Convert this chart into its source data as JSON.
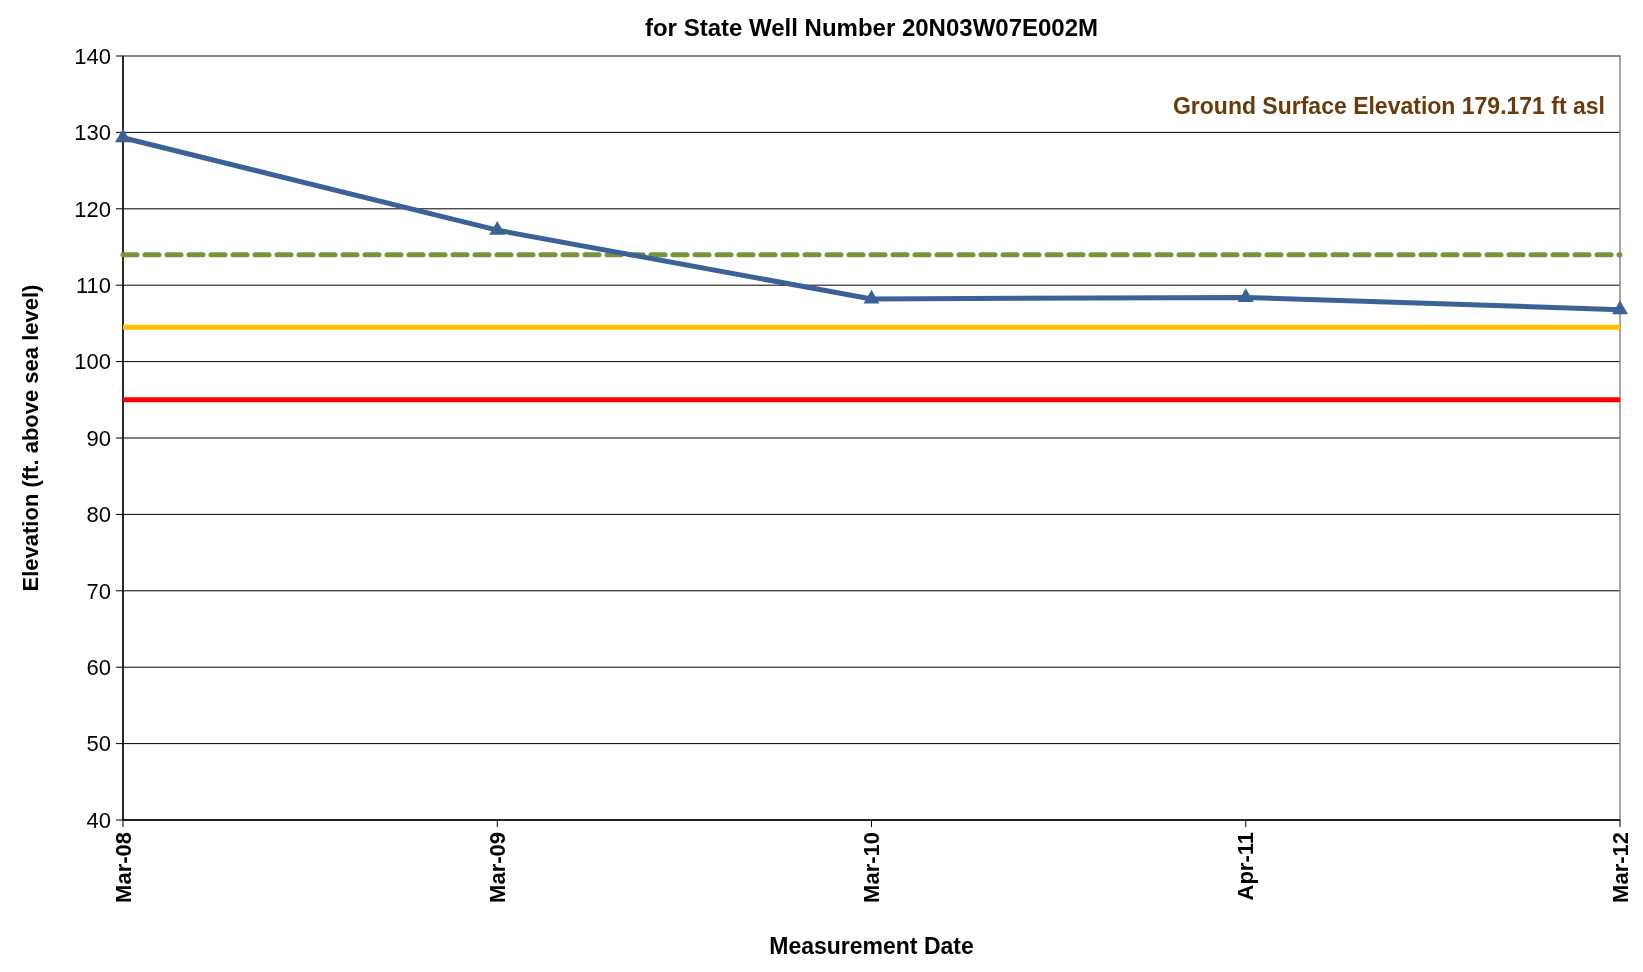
{
  "chart_data": {
    "type": "line",
    "title": "for State Well Number 20N03W07E002M",
    "xlabel": "Measurement Date",
    "ylabel": "Elevation (ft. above sea level)",
    "categories": [
      "Mar-08",
      "Mar-09",
      "Mar-10",
      "Apr-11",
      "Mar-12"
    ],
    "series": [
      {
        "color": "#3a6297",
        "values": [
          129.3,
          117.2,
          108.2,
          108.4,
          106.8
        ]
      }
    ],
    "ylim": [
      40,
      140
    ],
    "yticks": [
      40,
      50,
      60,
      70,
      80,
      90,
      100,
      110,
      120,
      130,
      140
    ],
    "grid": "y",
    "marker": "triangle",
    "line_style": "solid",
    "ref_lines": [
      {
        "axis": "y",
        "value": 114,
        "color": "#77933c",
        "line_style": "dashed"
      },
      {
        "axis": "y",
        "value": 104.5,
        "color": "#ffc000",
        "line_style": "solid"
      },
      {
        "axis": "y",
        "value": 95,
        "color": "#ff0000",
        "line_style": "solid"
      }
    ],
    "annotations": [
      "Ground Surface Elevation 179.171 ft asl"
    ]
  }
}
